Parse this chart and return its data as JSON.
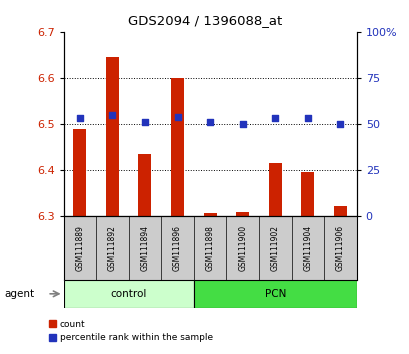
{
  "title": "GDS2094 / 1396088_at",
  "samples": [
    "GSM111889",
    "GSM111892",
    "GSM111894",
    "GSM111896",
    "GSM111898",
    "GSM111900",
    "GSM111902",
    "GSM111904",
    "GSM111906"
  ],
  "groups": [
    "control",
    "control",
    "control",
    "control",
    "PCN",
    "PCN",
    "PCN",
    "PCN",
    "PCN"
  ],
  "red_values": [
    6.49,
    6.645,
    6.435,
    6.6,
    6.306,
    6.308,
    6.415,
    6.395,
    6.322
  ],
  "blue_values": [
    53,
    55,
    51,
    54,
    51,
    50,
    53,
    53,
    50
  ],
  "ylim_left": [
    6.3,
    6.7
  ],
  "ylim_right": [
    0,
    100
  ],
  "yticks_left": [
    6.3,
    6.4,
    6.5,
    6.6,
    6.7
  ],
  "yticks_right": [
    0,
    25,
    50,
    75,
    100
  ],
  "yticklabels_right": [
    "0",
    "25",
    "50",
    "75",
    "100%"
  ],
  "bar_bottom": 6.3,
  "red_color": "#cc2200",
  "blue_color": "#2233bb",
  "grid_color": "#000000",
  "bg_color": "#ffffff",
  "plot_bg": "#ffffff",
  "control_color": "#ccffcc",
  "pcn_color": "#44dd44",
  "label_box_color": "#cccccc",
  "agent_label": "agent",
  "legend_count": "count",
  "legend_pct": "percentile rank within the sample",
  "n_control": 4,
  "n_pcn": 5
}
